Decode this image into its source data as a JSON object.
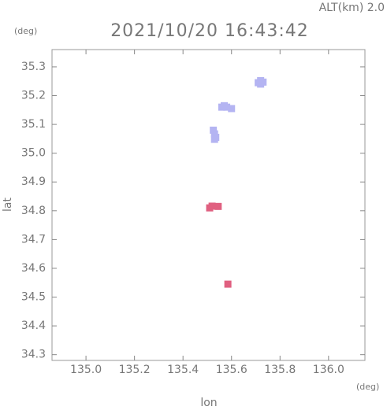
{
  "chart_data": {
    "type": "scatter",
    "title": "2021/10/20 16:43:42",
    "subtitle": "ALT(km) 2.0",
    "x_label": "lon",
    "y_label": "lat",
    "x_unit": "(deg)",
    "y_unit": "(deg)",
    "xlim": [
      134.86,
      136.15
    ],
    "ylim": [
      34.28,
      35.36
    ],
    "xticks": [
      {
        "value": 135,
        "label": "135.0"
      },
      135.2,
      135.4,
      135.6,
      135.8,
      {
        "value": 136,
        "label": "136.0"
      }
    ],
    "yticks": [
      {
        "value": 34.3,
        "label": "34.3"
      },
      34.4,
      34.5,
      34.6,
      34.7,
      34.8,
      34.9,
      {
        "value": 35,
        "label": "35.0"
      },
      35.1,
      35.2,
      35.3
    ],
    "series": [
      {
        "color": "#b4b4f2",
        "x": [
          135.71,
          135.72,
          135.73,
          135.72,
          135.56,
          135.58,
          135.6,
          135.57,
          135.525,
          135.53,
          135.535,
          135.53
        ],
        "y": [
          35.245,
          35.252,
          35.247,
          35.24,
          35.16,
          35.16,
          35.155,
          35.165,
          35.08,
          35.067,
          35.055,
          35.048
        ]
      },
      {
        "color": "#e06080",
        "x": [
          135.51,
          135.52,
          135.545,
          135.585
        ],
        "y": [
          34.81,
          34.816,
          34.815,
          34.545
        ]
      }
    ]
  }
}
